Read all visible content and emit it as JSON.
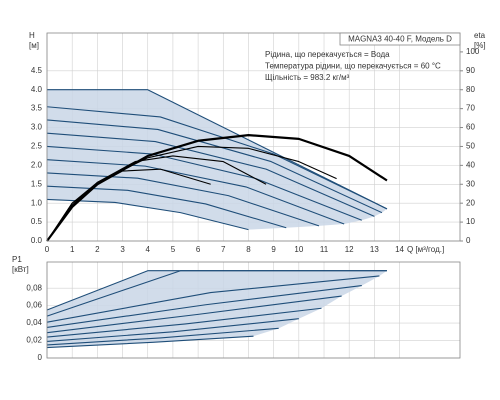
{
  "chart_data": [
    {
      "type": "line",
      "xlabel": "Q [м³/год.]",
      "ylabel": "H",
      "ylabel_unit": "[м]",
      "y2label": "eta",
      "y2label_unit": "[%]",
      "title": "MAGNA3 40-40 F, Модель D",
      "annotations": [
        "Рідина, що перекачується = Вода",
        "Температура рідини, що перекачується = 60 °C",
        "Щільність = 983.2 кг/м³"
      ],
      "xlim": [
        0,
        16.4
      ],
      "xticks": [
        0,
        1,
        2,
        3,
        4,
        5,
        6,
        7,
        8,
        9,
        10,
        11,
        12,
        13,
        14
      ],
      "ylim": [
        0,
        5.5
      ],
      "yticks": [
        {
          "value": 0,
          "label": "0.0"
        },
        0.5,
        {
          "value": 1,
          "label": "1.0"
        },
        1.5,
        {
          "value": 2,
          "label": "2.0"
        },
        2.5,
        {
          "value": 3,
          "label": "3.0"
        },
        3.5,
        {
          "value": 4,
          "label": "4.0"
        },
        4.5
      ],
      "y2lim": [
        0,
        110
      ],
      "y2ticks": [
        0,
        10,
        20,
        30,
        40,
        50,
        60,
        70,
        80,
        90,
        100
      ],
      "grid": true,
      "fill_color": "#c9d6e6",
      "series": [
        {
          "color": "#1f4e79",
          "x": [
            0,
            4,
            13.5
          ],
          "values": [
            4.0,
            4.0,
            0.85
          ]
        },
        {
          "color": "#1f4e79",
          "x": [
            0,
            4.5,
            9,
            13.5
          ],
          "values": [
            3.55,
            3.28,
            2.3,
            0.85
          ]
        },
        {
          "color": "#1f4e79",
          "x": [
            0,
            4.4,
            8.9,
            13.3
          ],
          "values": [
            3.2,
            2.95,
            2.1,
            0.75
          ]
        },
        {
          "color": "#1f4e79",
          "x": [
            0,
            4.3,
            8.7,
            13
          ],
          "values": [
            2.85,
            2.63,
            1.9,
            0.65
          ]
        },
        {
          "color": "#1f4e79",
          "x": [
            0,
            4.2,
            8.3,
            12.5
          ],
          "values": [
            2.5,
            2.3,
            1.65,
            0.55
          ]
        },
        {
          "color": "#1f4e79",
          "x": [
            0,
            3.9,
            7.9,
            11.8
          ],
          "values": [
            2.15,
            1.98,
            1.43,
            0.45
          ]
        },
        {
          "color": "#1f4e79",
          "x": [
            0,
            3.6,
            7.2,
            10.8
          ],
          "values": [
            1.8,
            1.66,
            1.2,
            0.4
          ]
        },
        {
          "color": "#1f4e79",
          "x": [
            0,
            3.2,
            6.3,
            9.5
          ],
          "values": [
            1.45,
            1.34,
            0.98,
            0.35
          ]
        },
        {
          "color": "#1f4e79",
          "x": [
            0,
            2.7,
            5.3,
            8
          ],
          "values": [
            1.1,
            1.02,
            0.75,
            0.3
          ]
        },
        {
          "color": "#000000",
          "axis": "y2",
          "x": [
            0,
            1,
            2,
            4,
            6,
            8,
            10,
            12,
            13.5
          ],
          "values": [
            0,
            18,
            30,
            45,
            53,
            56,
            54,
            45,
            32
          ]
        },
        {
          "color": "#000000",
          "axis": "y2",
          "x": [
            0,
            1,
            2,
            4,
            6,
            8,
            10,
            11.5
          ],
          "values": [
            0,
            19,
            31,
            44,
            50,
            49,
            42,
            33
          ]
        },
        {
          "color": "#000000",
          "axis": "y2",
          "x": [
            0,
            1,
            2,
            3.5,
            5,
            7,
            8.7
          ],
          "values": [
            0,
            20,
            31,
            42,
            45,
            42,
            30
          ]
        },
        {
          "color": "#000000",
          "axis": "y2",
          "x": [
            0,
            1,
            2,
            3,
            4.5,
            6.5
          ],
          "values": [
            0,
            20,
            30,
            37,
            38,
            30
          ]
        }
      ]
    },
    {
      "type": "line",
      "ylabel": "P1",
      "ylabel_unit": "[кВт]",
      "xlim": [
        0,
        16.4
      ],
      "ylim": [
        0,
        0.11
      ],
      "yticks": [
        0,
        {
          "value": 0.02,
          "label": "0,02"
        },
        {
          "value": 0.04,
          "label": "0,04"
        },
        {
          "value": 0.06,
          "label": "0,06"
        },
        {
          "value": 0.08,
          "label": "0,08"
        }
      ],
      "grid": true,
      "fill_color": "#c9d6e6",
      "series": [
        {
          "color": "#1f4e79",
          "x": [
            0,
            4,
            13.5
          ],
          "values": [
            0.055,
            0.1,
            0.1
          ]
        },
        {
          "color": "#1f4e79",
          "x": [
            0,
            5.3,
            13.5
          ],
          "values": [
            0.048,
            0.1,
            0.1
          ]
        },
        {
          "color": "#1f4e79",
          "x": [
            0,
            6.5,
            13.2
          ],
          "values": [
            0.041,
            0.075,
            0.094
          ]
        },
        {
          "color": "#1f4e79",
          "x": [
            0,
            6.3,
            12.5
          ],
          "values": [
            0.035,
            0.061,
            0.083
          ]
        },
        {
          "color": "#1f4e79",
          "x": [
            0,
            6,
            11.7
          ],
          "values": [
            0.029,
            0.05,
            0.071
          ]
        },
        {
          "color": "#1f4e79",
          "x": [
            0,
            5.5,
            10.9
          ],
          "values": [
            0.024,
            0.039,
            0.057
          ]
        },
        {
          "color": "#1f4e79",
          "x": [
            0,
            5,
            10
          ],
          "values": [
            0.019,
            0.03,
            0.045
          ]
        },
        {
          "color": "#1f4e79",
          "x": [
            0,
            4.5,
            9.2
          ],
          "values": [
            0.015,
            0.023,
            0.034
          ]
        },
        {
          "color": "#1f4e79",
          "x": [
            0,
            4.2,
            8.2
          ],
          "values": [
            0.012,
            0.018,
            0.025
          ]
        }
      ]
    }
  ]
}
